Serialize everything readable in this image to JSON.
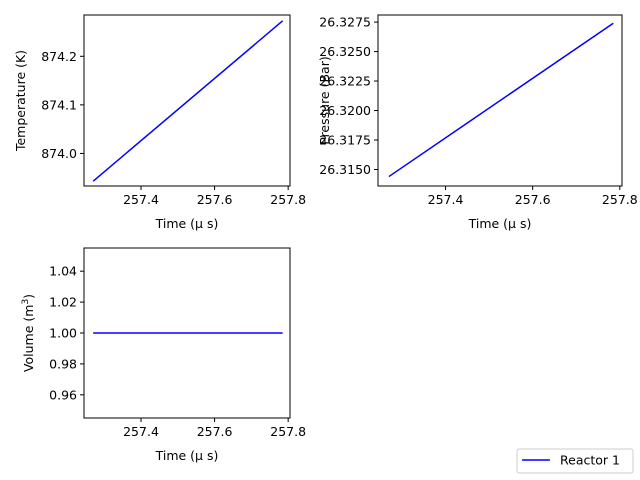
{
  "legend": {
    "label": "Reactor 1",
    "placement": "bottom-right"
  },
  "line_color": "#0000ff",
  "chart_data": [
    {
      "type": "line",
      "xlabel": "Time (μ s)",
      "ylabel": "Temperature (K)",
      "xlim": [
        257.245,
        257.805
      ],
      "ylim": [
        873.933,
        874.285
      ],
      "xticks": [
        257.4,
        257.6,
        257.8
      ],
      "yticks": [
        874.0,
        874.1,
        874.2
      ],
      "x": [
        257.27,
        257.785
      ],
      "y": [
        873.943,
        874.273
      ]
    },
    {
      "type": "line",
      "xlabel": "Time (μ s)",
      "ylabel": "Pressure (Bar)",
      "xlim": [
        257.245,
        257.805
      ],
      "ylim": [
        26.3136,
        26.3281
      ],
      "xticks": [
        257.4,
        257.6,
        257.8
      ],
      "yticks": [
        26.315,
        26.3175,
        26.32,
        26.3225,
        26.325,
        26.3275
      ],
      "x": [
        257.27,
        257.785
      ],
      "y": [
        26.3144,
        26.3274
      ]
    },
    {
      "type": "line",
      "xlabel": "Time (μ s)",
      "ylabel": "Volume (m3)",
      "xlim": [
        257.245,
        257.805
      ],
      "ylim": [
        0.945,
        1.055
      ],
      "xticks": [
        257.4,
        257.6,
        257.8
      ],
      "yticks": [
        0.96,
        0.98,
        1.0,
        1.02,
        1.04
      ],
      "x": [
        257.27,
        257.785
      ],
      "y": [
        1.0,
        1.0
      ]
    }
  ]
}
